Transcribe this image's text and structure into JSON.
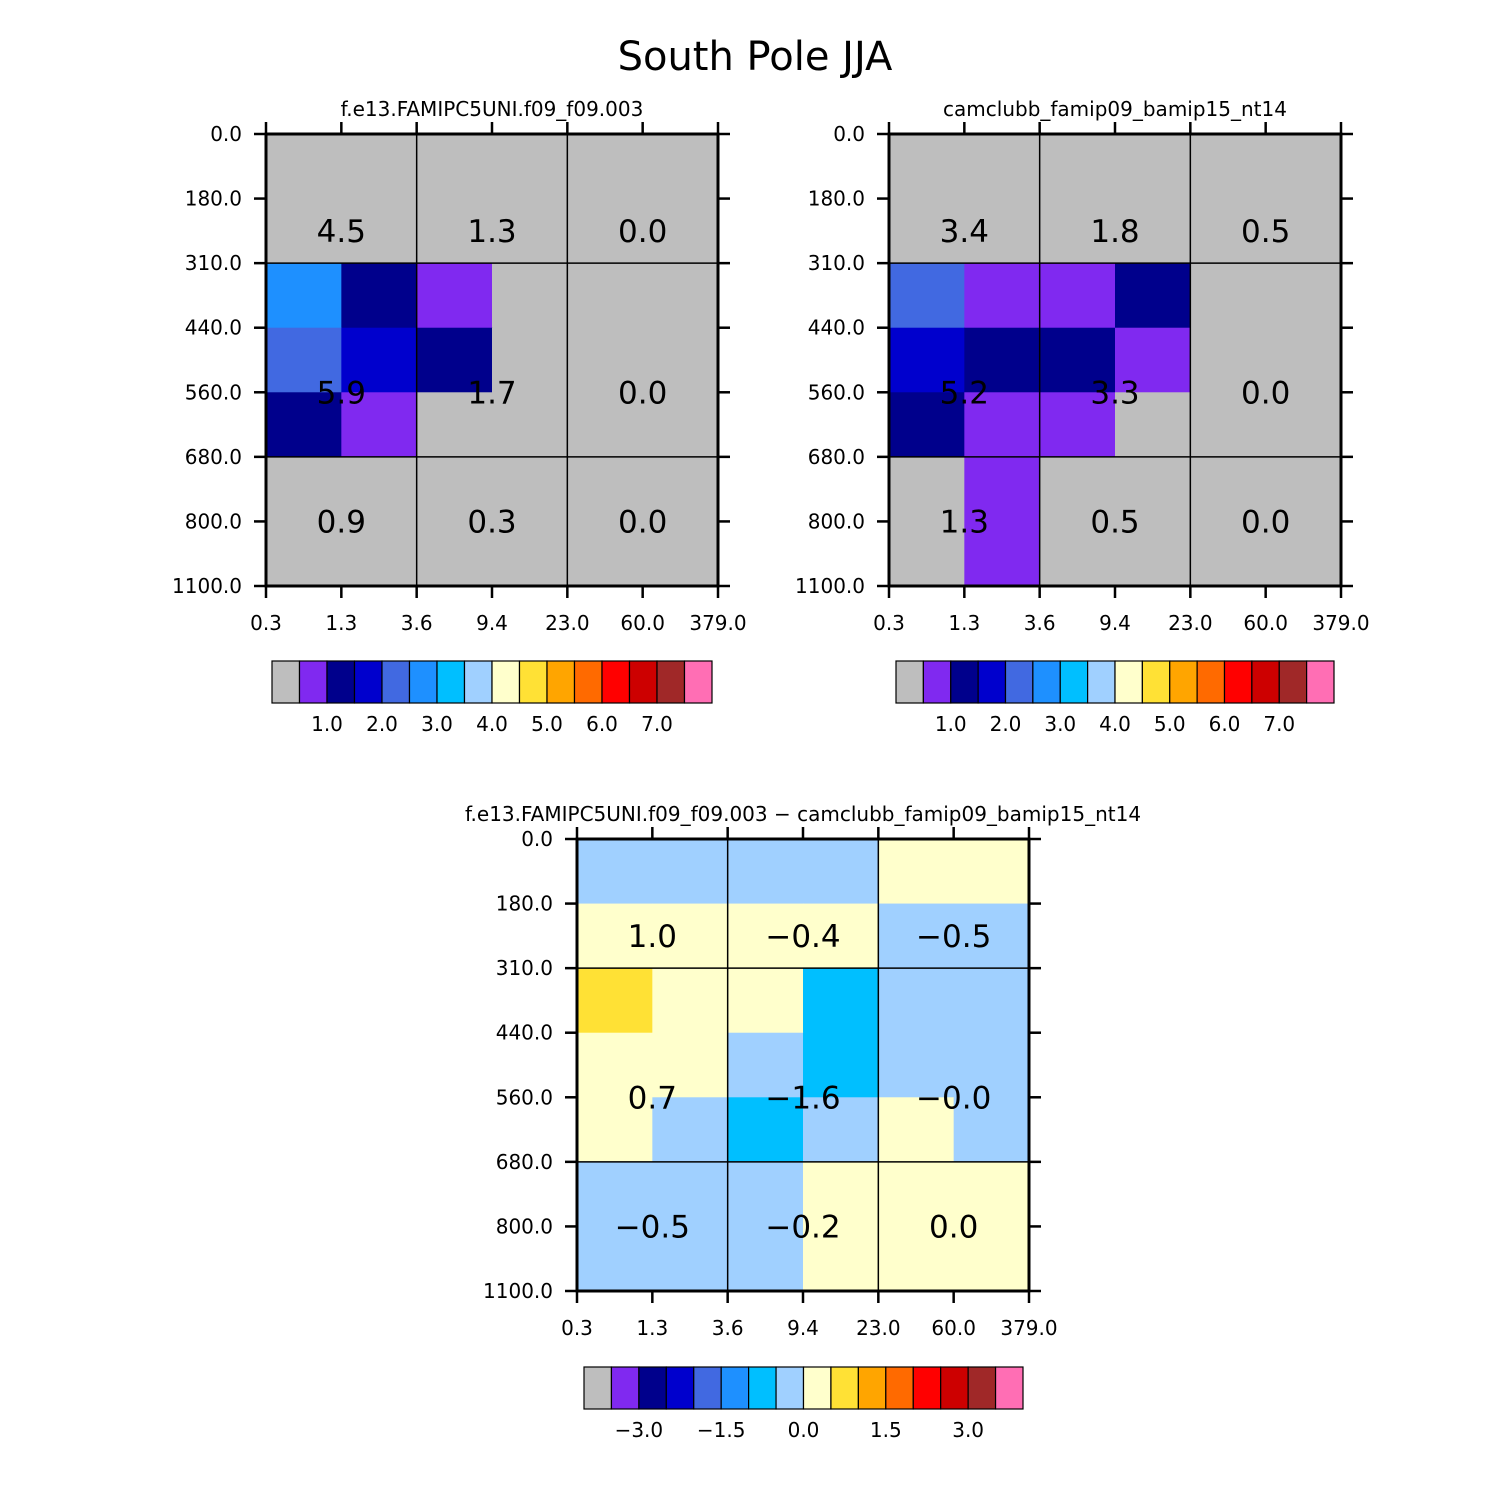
{
  "page": {
    "title": "South Pole JJA"
  },
  "palette": [
    "#bebebe",
    "#8029f0",
    "#00008c",
    "#0000cd",
    "#4169e1",
    "#1e90ff",
    "#00bfff",
    "#a0d0ff",
    "#ffffcc",
    "#ffe135",
    "#ffa500",
    "#ff6a00",
    "#ff0000",
    "#cd0000",
    "#a02828",
    "#ff6eb4"
  ],
  "chart_data": [
    {
      "type": "heatmap",
      "title": "f.e13.FAMIPC5UNI.f09_f09.003",
      "x_ticks": [
        "0.3",
        "1.3",
        "3.6",
        "9.4",
        "23.0",
        "60.0",
        "379.0"
      ],
      "y_ticks": [
        "0.0",
        "180.0",
        "310.0",
        "440.0",
        "560.0",
        "680.0",
        "800.0",
        "1100.0"
      ],
      "grid_rows": [
        [
          0,
          0,
          0,
          0,
          0,
          0
        ],
        [
          0,
          0,
          0,
          0,
          0,
          0
        ],
        [
          5,
          2,
          1,
          0,
          0,
          0
        ],
        [
          4,
          3,
          2,
          0,
          0,
          0
        ],
        [
          2,
          1,
          0,
          0,
          0,
          0
        ],
        [
          0,
          0,
          0,
          0,
          0,
          0
        ]
      ],
      "cell_labels": [
        [
          "4.5",
          "1.3",
          "0.0"
        ],
        [
          "5.9",
          "1.7",
          "0.0"
        ],
        [
          "0.9",
          "0.3",
          "0.0"
        ]
      ],
      "colorbar": {
        "ticks": [
          "1.0",
          "2.0",
          "3.0",
          "4.0",
          "5.0",
          "6.0",
          "7.0"
        ]
      }
    },
    {
      "type": "heatmap",
      "title": "camclubb_famip09_bamip15_nt14",
      "x_ticks": [
        "0.3",
        "1.3",
        "3.6",
        "9.4",
        "23.0",
        "60.0",
        "379.0"
      ],
      "y_ticks": [
        "0.0",
        "180.0",
        "310.0",
        "440.0",
        "560.0",
        "680.0",
        "800.0",
        "1100.0"
      ],
      "grid_rows": [
        [
          0,
          0,
          0,
          0,
          0,
          0
        ],
        [
          0,
          0,
          0,
          0,
          0,
          0
        ],
        [
          4,
          1,
          1,
          2,
          0,
          0
        ],
        [
          3,
          2,
          2,
          1,
          0,
          0
        ],
        [
          2,
          1,
          1,
          0,
          0,
          0
        ],
        [
          0,
          1,
          0,
          0,
          0,
          0
        ]
      ],
      "cell_labels": [
        [
          "3.4",
          "1.8",
          "0.5"
        ],
        [
          "5.2",
          "3.3",
          "0.0"
        ],
        [
          "1.3",
          "0.5",
          "0.0"
        ]
      ],
      "colorbar": {
        "ticks": [
          "1.0",
          "2.0",
          "3.0",
          "4.0",
          "5.0",
          "6.0",
          "7.0"
        ]
      }
    },
    {
      "type": "heatmap",
      "title": "f.e13.FAMIPC5UNI.f09_f09.003 − camclubb_famip09_bamip15_nt14",
      "x_ticks": [
        "0.3",
        "1.3",
        "3.6",
        "9.4",
        "23.0",
        "60.0",
        "379.0"
      ],
      "y_ticks": [
        "0.0",
        "180.0",
        "310.0",
        "440.0",
        "560.0",
        "680.0",
        "800.0",
        "1100.0"
      ],
      "grid_rows": [
        [
          7,
          7,
          7,
          7,
          8,
          8
        ],
        [
          8,
          8,
          8,
          8,
          7,
          7
        ],
        [
          9,
          8,
          8,
          6,
          7,
          7
        ],
        [
          8,
          8,
          7,
          6,
          7,
          7
        ],
        [
          8,
          7,
          6,
          7,
          8,
          7
        ],
        [
          7,
          7,
          7,
          8,
          8,
          8
        ]
      ],
      "cell_labels": [
        [
          "1.0",
          "−0.4",
          "−0.5"
        ],
        [
          "0.7",
          "−1.6",
          "−0.0"
        ],
        [
          "−0.5",
          "−0.2",
          "0.0"
        ]
      ],
      "colorbar": {
        "ticks": [
          "−3.0",
          "−1.5",
          "0.0",
          "1.5",
          "3.0"
        ]
      }
    }
  ]
}
